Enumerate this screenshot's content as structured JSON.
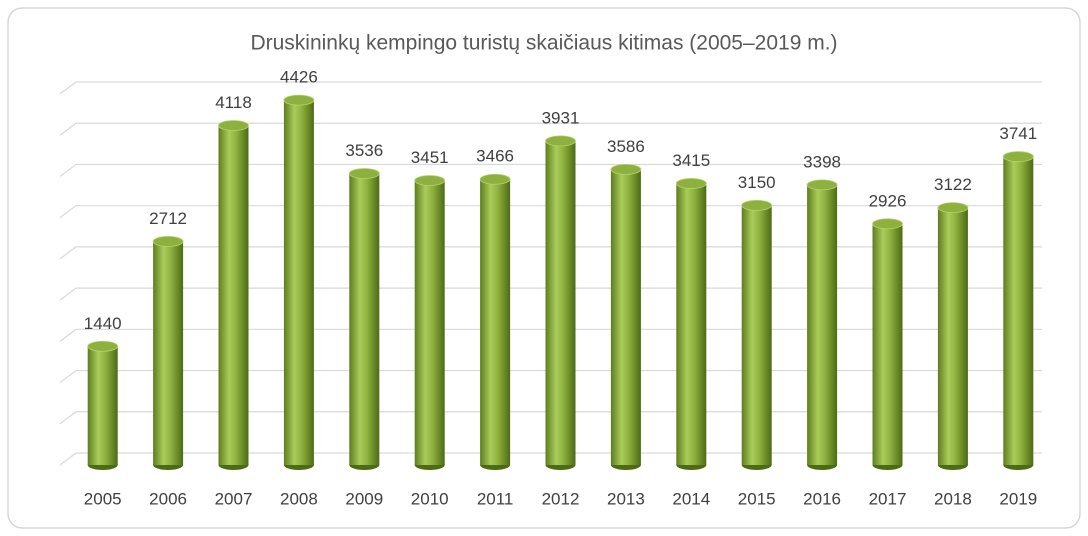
{
  "chart_data": {
    "type": "bar",
    "title": "Druskininkų kempingo turistų skaičiaus kitimas (2005–2019 m.)",
    "categories": [
      "2005",
      "2006",
      "2007",
      "2008",
      "2009",
      "2010",
      "2011",
      "2012",
      "2013",
      "2014",
      "2015",
      "2016",
      "2017",
      "2018",
      "2019"
    ],
    "values": [
      1440,
      2712,
      4118,
      4426,
      3536,
      3451,
      3466,
      3931,
      3586,
      3415,
      3150,
      3398,
      2926,
      3122,
      3741
    ],
    "color": "#8db03e",
    "ylim": [
      0,
      4500
    ],
    "yticks": [
      0,
      500,
      1000,
      1500,
      2000,
      2500,
      3000,
      3500,
      4000,
      4500
    ],
    "grid": true
  }
}
